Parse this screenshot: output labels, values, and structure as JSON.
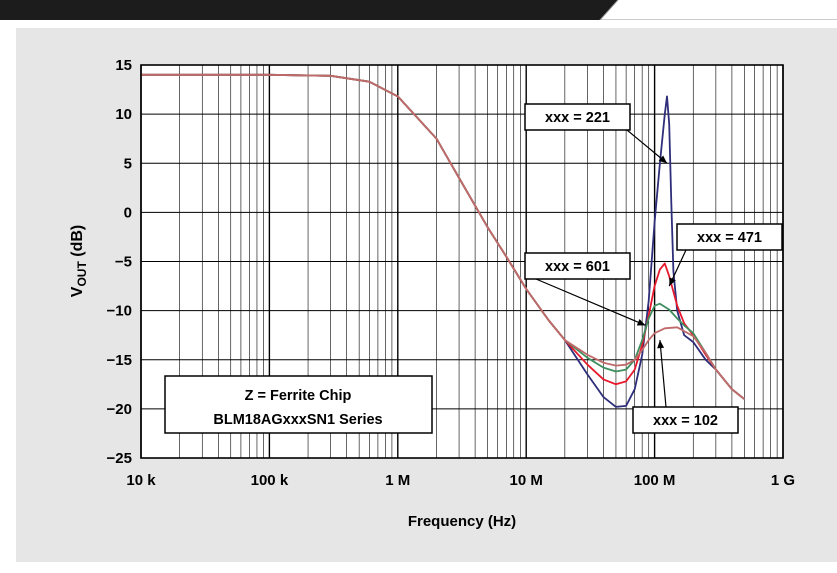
{
  "chart_data": {
    "type": "line",
    "xlabel": "Frequency (Hz)",
    "ylabel": {
      "main": "V",
      "sub": "OUT",
      "suffix": " (dB)"
    },
    "xscale": "log",
    "xlim": [
      10000,
      1000000000
    ],
    "ylim": [
      -25,
      15
    ],
    "grid": true,
    "x_ticks": [
      {
        "value": 10000,
        "label": "10 k"
      },
      {
        "value": 100000,
        "label": "100 k"
      },
      {
        "value": 1000000,
        "label": "1 M"
      },
      {
        "value": 10000000,
        "label": "10 M"
      },
      {
        "value": 100000000,
        "label": "100 M"
      },
      {
        "value": 1000000000,
        "label": "1 G"
      }
    ],
    "y_ticks": [
      {
        "value": 15,
        "label": "15"
      },
      {
        "value": 10,
        "label": "10"
      },
      {
        "value": 5,
        "label": "5"
      },
      {
        "value": 0,
        "label": "0"
      },
      {
        "value": -5,
        "label": "−5"
      },
      {
        "value": -10,
        "label": "−10"
      },
      {
        "value": -15,
        "label": "−15"
      },
      {
        "value": -20,
        "label": "−20"
      },
      {
        "value": -25,
        "label": "−25"
      }
    ],
    "series": [
      {
        "color": "#2e2e7a",
        "x": [
          10000,
          100000,
          300000,
          600000,
          1000000,
          2000000,
          3000000,
          5000000,
          7000000,
          10000000,
          15000000,
          20000000,
          30000000,
          40000000,
          50000000,
          60000000,
          70000000,
          80000000,
          90000000,
          100000000,
          110000000,
          120000000,
          125000000,
          130000000,
          135000000,
          140000000,
          150000000,
          170000000,
          200000000,
          250000000,
          300000000,
          400000000,
          500000000
        ],
        "y": [
          14,
          14,
          13.9,
          13.3,
          11.8,
          7.5,
          3.5,
          -1.5,
          -4.5,
          -7.8,
          -11,
          -13,
          -16.5,
          -18.8,
          -19.8,
          -19.7,
          -18,
          -14.5,
          -9,
          -1,
          5,
          10,
          11.8,
          9,
          1,
          -6,
          -10,
          -12.5,
          -13.2,
          -15,
          -16,
          -18,
          -19
        ]
      },
      {
        "color": "#e8182c",
        "x": [
          10000,
          100000,
          300000,
          600000,
          1000000,
          2000000,
          3000000,
          5000000,
          7000000,
          10000000,
          15000000,
          20000000,
          30000000,
          40000000,
          50000000,
          60000000,
          70000000,
          80000000,
          90000000,
          100000000,
          110000000,
          120000000,
          130000000,
          150000000,
          170000000,
          200000000,
          250000000,
          300000000,
          400000000,
          500000000
        ],
        "y": [
          14,
          14,
          13.9,
          13.3,
          11.8,
          7.5,
          3.5,
          -1.5,
          -4.5,
          -7.8,
          -11,
          -13,
          -15.5,
          -17,
          -17.5,
          -17.2,
          -16,
          -13.5,
          -10.5,
          -7.5,
          -5.8,
          -5.2,
          -6.5,
          -9.5,
          -11.3,
          -12.5,
          -14.5,
          -16,
          -18,
          -19
        ]
      },
      {
        "color": "#3f8f5f",
        "x": [
          10000,
          100000,
          300000,
          600000,
          1000000,
          2000000,
          3000000,
          5000000,
          7000000,
          10000000,
          15000000,
          20000000,
          30000000,
          40000000,
          50000000,
          60000000,
          70000000,
          80000000,
          90000000,
          100000000,
          110000000,
          130000000,
          150000000,
          170000000,
          200000000,
          250000000,
          300000000,
          400000000,
          500000000
        ],
        "y": [
          14,
          14,
          13.9,
          13.3,
          11.8,
          7.5,
          3.5,
          -1.5,
          -4.5,
          -7.8,
          -11,
          -13,
          -14.8,
          -15.8,
          -16.2,
          -16,
          -15,
          -13,
          -10.8,
          -9.5,
          -9.3,
          -9.9,
          -10.8,
          -11.5,
          -12.3,
          -14.3,
          -16,
          -18,
          -19
        ]
      },
      {
        "color": "#c06a6a",
        "x": [
          10000,
          100000,
          300000,
          600000,
          1000000,
          2000000,
          3000000,
          5000000,
          7000000,
          10000000,
          15000000,
          20000000,
          30000000,
          40000000,
          50000000,
          60000000,
          70000000,
          80000000,
          90000000,
          100000000,
          120000000,
          150000000,
          200000000,
          250000000,
          300000000,
          400000000,
          500000000
        ],
        "y": [
          14,
          14,
          13.9,
          13.3,
          11.8,
          7.5,
          3.5,
          -1.5,
          -4.5,
          -7.8,
          -11,
          -13,
          -14.5,
          -15.3,
          -15.6,
          -15.5,
          -15,
          -14,
          -13,
          -12.3,
          -11.8,
          -11.7,
          -12.6,
          -14.3,
          -16,
          -18,
          -19
        ]
      }
    ],
    "annotations": [
      {
        "text": "xxx = 221",
        "arrow_to": [
          125000000,
          5
        ]
      },
      {
        "text": "xxx = 471",
        "arrow_to": [
          130000000,
          -7.5
        ]
      },
      {
        "text": "xxx = 601",
        "arrow_to": [
          85000000,
          -11.5
        ]
      },
      {
        "text": "xxx = 102",
        "arrow_to": [
          110000000,
          -13
        ]
      }
    ],
    "legend_box": {
      "line1": "Z = Ferrite Chip",
      "line2": "BLM18AGxxxSN1 Series"
    }
  }
}
